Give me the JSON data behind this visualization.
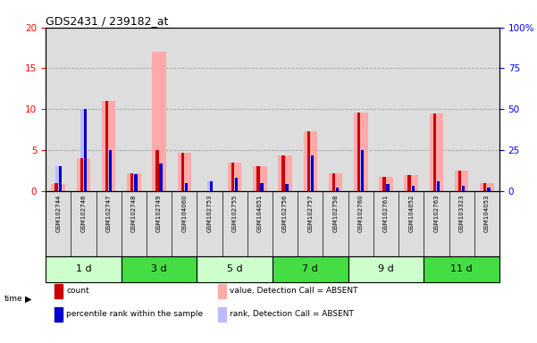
{
  "title": "GDS2431 / 239182_at",
  "samples": [
    "GSM102744",
    "GSM102746",
    "GSM102747",
    "GSM102748",
    "GSM102749",
    "GSM104060",
    "GSM102753",
    "GSM102755",
    "GSM104051",
    "GSM102756",
    "GSM102757",
    "GSM102758",
    "GSM102760",
    "GSM102761",
    "GSM104052",
    "GSM102763",
    "GSM103323",
    "GSM104053"
  ],
  "time_groups": [
    {
      "label": "1 d",
      "start": 0,
      "end": 3,
      "color": "#ccffcc"
    },
    {
      "label": "3 d",
      "start": 3,
      "end": 6,
      "color": "#44dd44"
    },
    {
      "label": "5 d",
      "start": 6,
      "end": 9,
      "color": "#ccffcc"
    },
    {
      "label": "7 d",
      "start": 9,
      "end": 12,
      "color": "#44dd44"
    },
    {
      "label": "9 d",
      "start": 12,
      "end": 15,
      "color": "#ccffcc"
    },
    {
      "label": "11 d",
      "start": 15,
      "end": 18,
      "color": "#44dd44"
    }
  ],
  "count_values": [
    1.0,
    4.0,
    11.0,
    2.2,
    5.0,
    4.7,
    0.0,
    3.5,
    3.0,
    4.3,
    7.3,
    2.2,
    9.6,
    1.7,
    1.9,
    9.5,
    2.5,
    1.0
  ],
  "percentile_vals": [
    15,
    50,
    25,
    10,
    17,
    5,
    6,
    8,
    5,
    4,
    22,
    2,
    25,
    4,
    3,
    6,
    3,
    2
  ],
  "absent_value": [
    0.9,
    4.0,
    11.0,
    2.2,
    17.0,
    4.7,
    0.0,
    3.5,
    3.0,
    4.3,
    7.3,
    2.2,
    9.6,
    1.7,
    1.9,
    9.5,
    2.5,
    1.0
  ],
  "absent_rank": [
    15,
    50,
    25,
    10,
    17,
    5,
    6,
    8,
    5,
    4,
    22,
    2,
    25,
    4,
    3,
    6,
    3,
    2
  ],
  "ylim_left": [
    0,
    20
  ],
  "ylim_right": [
    0,
    100
  ],
  "yticks_left": [
    0,
    5,
    10,
    15,
    20
  ],
  "yticks_right": [
    0,
    25,
    50,
    75,
    100
  ],
  "color_count": "#cc0000",
  "color_percentile": "#0000cc",
  "color_absent_value": "#ffaaaa",
  "color_absent_rank": "#bbbbff",
  "color_col_bg_light": "#dddddd",
  "color_col_bg_dark": "#cccccc",
  "legend_items": [
    {
      "color": "#cc0000",
      "label": "count"
    },
    {
      "color": "#0000cc",
      "label": "percentile rank within the sample"
    },
    {
      "color": "#ffaaaa",
      "label": "value, Detection Call = ABSENT"
    },
    {
      "color": "#bbbbff",
      "label": "rank, Detection Call = ABSENT"
    }
  ]
}
